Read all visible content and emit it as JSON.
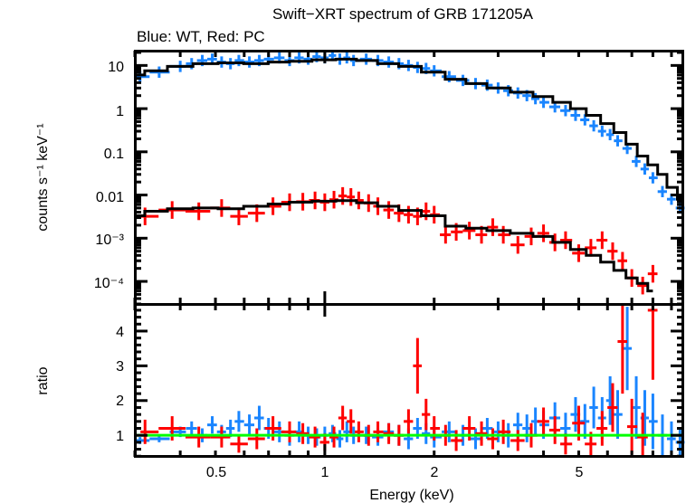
{
  "chart_data": {
    "type": "scatter",
    "title": "Swift−XRT spectrum of GRB 171205A",
    "subtitle": "Blue: WT, Red: PC",
    "xlabel": "Energy (keV)",
    "xscale": "log",
    "xlim": [
      0.3,
      9.7
    ],
    "xticks": [
      0.5,
      1,
      2,
      5
    ],
    "xtick_labels": [
      "0.5",
      "1",
      "2",
      "5"
    ],
    "colors": {
      "WT": "#1a85ff",
      "PC": "#ff0000",
      "model": "#000000",
      "unity": "#00ff00"
    },
    "panels": [
      {
        "name": "spectrum",
        "ylabel": "counts s⁻¹ keV⁻¹",
        "yscale": "log",
        "ylim": [
          3e-05,
          22
        ],
        "yticks": [
          10,
          1,
          0.1,
          0.01,
          0.001,
          0.0001
        ],
        "ytick_labels": [
          "10",
          "1",
          "0.1",
          "0.01",
          "10⁻³",
          "10⁻⁴"
        ],
        "series": [
          {
            "name": "WT",
            "x": [
              0.31,
              0.35,
              0.4,
              0.43,
              0.46,
              0.49,
              0.52,
              0.55,
              0.58,
              0.62,
              0.66,
              0.7,
              0.75,
              0.8,
              0.85,
              0.9,
              0.95,
              1.0,
              1.05,
              1.1,
              1.15,
              1.2,
              1.3,
              1.4,
              1.5,
              1.6,
              1.7,
              1.8,
              1.9,
              2.0,
              2.2,
              2.4,
              2.6,
              2.8,
              3.0,
              3.2,
              3.4,
              3.6,
              3.8,
              4.0,
              4.3,
              4.6,
              4.9,
              5.2,
              5.5,
              5.8,
              6.1,
              6.4,
              6.8,
              7.2,
              7.6,
              8.0,
              8.5,
              9.0,
              9.5
            ],
            "y": [
              5.5,
              7.0,
              9.5,
              11,
              13,
              14,
              12,
              11,
              13,
              12,
              13,
              14,
              15,
              13,
              15,
              14,
              16,
              15,
              17,
              14,
              15,
              13,
              14,
              13,
              12,
              11,
              10,
              9,
              8.5,
              7.5,
              5.5,
              4.5,
              3.8,
              3.5,
              3.0,
              2.6,
              2.3,
              2.0,
              1.7,
              1.4,
              1.1,
              0.9,
              0.7,
              0.55,
              0.4,
              0.3,
              0.25,
              0.18,
              0.12,
              0.06,
              0.04,
              0.025,
              0.012,
              0.008,
              0.005
            ]
          },
          {
            "name": "PC",
            "x": [
              0.32,
              0.38,
              0.45,
              0.52,
              0.58,
              0.65,
              0.72,
              0.8,
              0.87,
              0.94,
              1.0,
              1.06,
              1.12,
              1.18,
              1.24,
              1.32,
              1.4,
              1.5,
              1.6,
              1.7,
              1.8,
              1.9,
              2.0,
              2.15,
              2.3,
              2.5,
              2.7,
              2.9,
              3.1,
              3.4,
              3.7,
              4.0,
              4.3,
              4.6,
              5.0,
              5.4,
              5.8,
              6.2,
              6.6,
              7.0,
              7.5,
              8.0
            ],
            "y": [
              0.0032,
              0.0045,
              0.0042,
              0.005,
              0.0032,
              0.0038,
              0.0055,
              0.0068,
              0.007,
              0.0075,
              0.0068,
              0.0078,
              0.0095,
              0.009,
              0.0075,
              0.0065,
              0.0055,
              0.0045,
              0.0038,
              0.0035,
              0.0032,
              0.0042,
              0.0035,
              0.0012,
              0.0014,
              0.0015,
              0.0012,
              0.0018,
              0.0012,
              0.0007,
              0.0011,
              0.0013,
              0.0008,
              0.0009,
              0.00045,
              0.0006,
              0.0009,
              0.0005,
              0.0003,
              0.00012,
              8e-05,
              0.00015
            ]
          }
        ],
        "models": [
          {
            "name": "WT model",
            "x": [
              0.3,
              0.34,
              0.4,
              0.47,
              0.55,
              0.65,
              0.75,
              0.85,
              1.0,
              1.15,
              1.3,
              1.5,
              1.7,
              2.0,
              2.3,
              2.6,
              3.0,
              3.5,
              4.0,
              4.5,
              5.0,
              5.5,
              6.0,
              6.5,
              7.0,
              7.5,
              8.0,
              8.5,
              9.0,
              9.7
            ],
            "y": [
              6.0,
              7.5,
              9.5,
              11.0,
              11.5,
              11.0,
              12.0,
              12.5,
              13.5,
              14.0,
              13.0,
              11.0,
              9.5,
              7.0,
              4.8,
              3.8,
              3.0,
              2.4,
              1.9,
              1.4,
              1.0,
              0.7,
              0.45,
              0.28,
              0.15,
              0.08,
              0.05,
              0.03,
              0.015,
              0.008
            ]
          },
          {
            "name": "PC model",
            "x": [
              0.3,
              0.34,
              0.4,
              0.47,
              0.55,
              0.65,
              0.75,
              0.85,
              1.0,
              1.15,
              1.3,
              1.5,
              1.7,
              2.0,
              2.3,
              2.6,
              3.0,
              3.5,
              4.0,
              4.5,
              5.0,
              5.5,
              6.0,
              6.5,
              7.0,
              7.5,
              8.0
            ],
            "y": [
              0.0033,
              0.0042,
              0.0048,
              0.005,
              0.0048,
              0.0055,
              0.0062,
              0.0068,
              0.0072,
              0.0074,
              0.0066,
              0.0055,
              0.0044,
              0.0033,
              0.0019,
              0.0017,
              0.0015,
              0.0013,
              0.0011,
              0.0008,
              0.00055,
              0.0004,
              0.00028,
              0.00018,
              0.00012,
              9e-05,
              6e-05
            ]
          }
        ]
      },
      {
        "name": "ratio",
        "ylabel": "ratio",
        "yscale": "linear",
        "ylim": [
          0.38,
          4.78
        ],
        "yticks": [
          1,
          2,
          3,
          4
        ],
        "ytick_labels": [
          "1",
          "2",
          "3",
          "4"
        ],
        "unity_line": 1,
        "series": [
          {
            "name": "WT",
            "x": [
              0.31,
              0.35,
              0.4,
              0.43,
              0.46,
              0.49,
              0.52,
              0.55,
              0.58,
              0.62,
              0.66,
              0.7,
              0.75,
              0.8,
              0.85,
              0.9,
              0.95,
              1.0,
              1.05,
              1.1,
              1.15,
              1.2,
              1.3,
              1.4,
              1.5,
              1.6,
              1.7,
              1.8,
              1.9,
              2.0,
              2.2,
              2.4,
              2.6,
              2.8,
              3.0,
              3.2,
              3.4,
              3.6,
              3.8,
              4.0,
              4.3,
              4.6,
              4.9,
              5.2,
              5.5,
              5.8,
              6.1,
              6.4,
              6.8,
              7.2,
              7.6,
              8.0,
              8.5,
              9.0,
              9.5
            ],
            "y": [
              0.85,
              0.9,
              1.1,
              1.2,
              1.0,
              1.3,
              1.1,
              1.2,
              1.4,
              1.3,
              1.5,
              1.2,
              1.1,
              1.0,
              1.1,
              1.0,
              0.95,
              1.0,
              1.05,
              0.9,
              1.1,
              1.0,
              1.0,
              0.95,
              1.1,
              1.0,
              0.9,
              1.2,
              1.05,
              0.95,
              1.1,
              1.0,
              0.9,
              1.2,
              1.1,
              1.0,
              1.3,
              1.2,
              1.4,
              1.3,
              1.5,
              1.2,
              1.6,
              1.4,
              1.8,
              1.5,
              2.0,
              1.6,
              3.5,
              1.8,
              1.5,
              1.4,
              1.0,
              0.9,
              0.8
            ],
            "err": [
              0.1,
              0.1,
              0.15,
              0.2,
              0.2,
              0.25,
              0.2,
              0.25,
              0.3,
              0.3,
              0.35,
              0.3,
              0.3,
              0.3,
              0.3,
              0.25,
              0.25,
              0.25,
              0.25,
              0.25,
              0.3,
              0.25,
              0.25,
              0.25,
              0.25,
              0.3,
              0.3,
              0.3,
              0.3,
              0.3,
              0.3,
              0.3,
              0.3,
              0.3,
              0.3,
              0.35,
              0.35,
              0.4,
              0.4,
              0.4,
              0.45,
              0.45,
              0.5,
              0.5,
              0.6,
              0.6,
              0.7,
              0.7,
              1.2,
              0.9,
              0.8,
              0.8,
              0.6,
              0.5,
              0.4
            ]
          },
          {
            "name": "PC",
            "x": [
              0.32,
              0.38,
              0.45,
              0.52,
              0.58,
              0.65,
              0.72,
              0.8,
              0.87,
              0.94,
              1.0,
              1.06,
              1.12,
              1.18,
              1.24,
              1.32,
              1.4,
              1.5,
              1.6,
              1.7,
              1.8,
              1.9,
              2.0,
              2.15,
              2.3,
              2.5,
              2.7,
              2.9,
              3.1,
              3.4,
              3.7,
              4.0,
              4.3,
              4.6,
              5.0,
              5.4,
              5.8,
              6.2,
              6.6,
              7.0,
              7.5,
              8.0
            ],
            "y": [
              1.1,
              1.2,
              0.95,
              0.95,
              0.75,
              0.9,
              1.2,
              1.1,
              1.05,
              0.95,
              0.8,
              0.95,
              1.5,
              1.4,
              1.1,
              1.0,
              1.1,
              1.05,
              1.0,
              1.4,
              3.0,
              1.6,
              1.2,
              1.0,
              0.85,
              1.2,
              1.05,
              0.9,
              1.1,
              0.85,
              1.0,
              1.4,
              1.15,
              0.75,
              1.35,
              0.75,
              1.2,
              1.8,
              3.7,
              1.25,
              0.95,
              4.6
            ],
            "err": [
              0.35,
              0.35,
              0.3,
              0.3,
              0.25,
              0.3,
              0.35,
              0.3,
              0.3,
              0.3,
              0.25,
              0.3,
              0.35,
              0.35,
              0.3,
              0.3,
              0.3,
              0.3,
              0.3,
              0.35,
              0.8,
              0.45,
              0.35,
              0.3,
              0.3,
              0.35,
              0.35,
              0.3,
              0.35,
              0.3,
              0.35,
              0.4,
              0.4,
              0.3,
              0.5,
              0.35,
              0.5,
              0.7,
              1.5,
              0.8,
              0.7,
              2.0
            ]
          }
        ]
      }
    ]
  }
}
